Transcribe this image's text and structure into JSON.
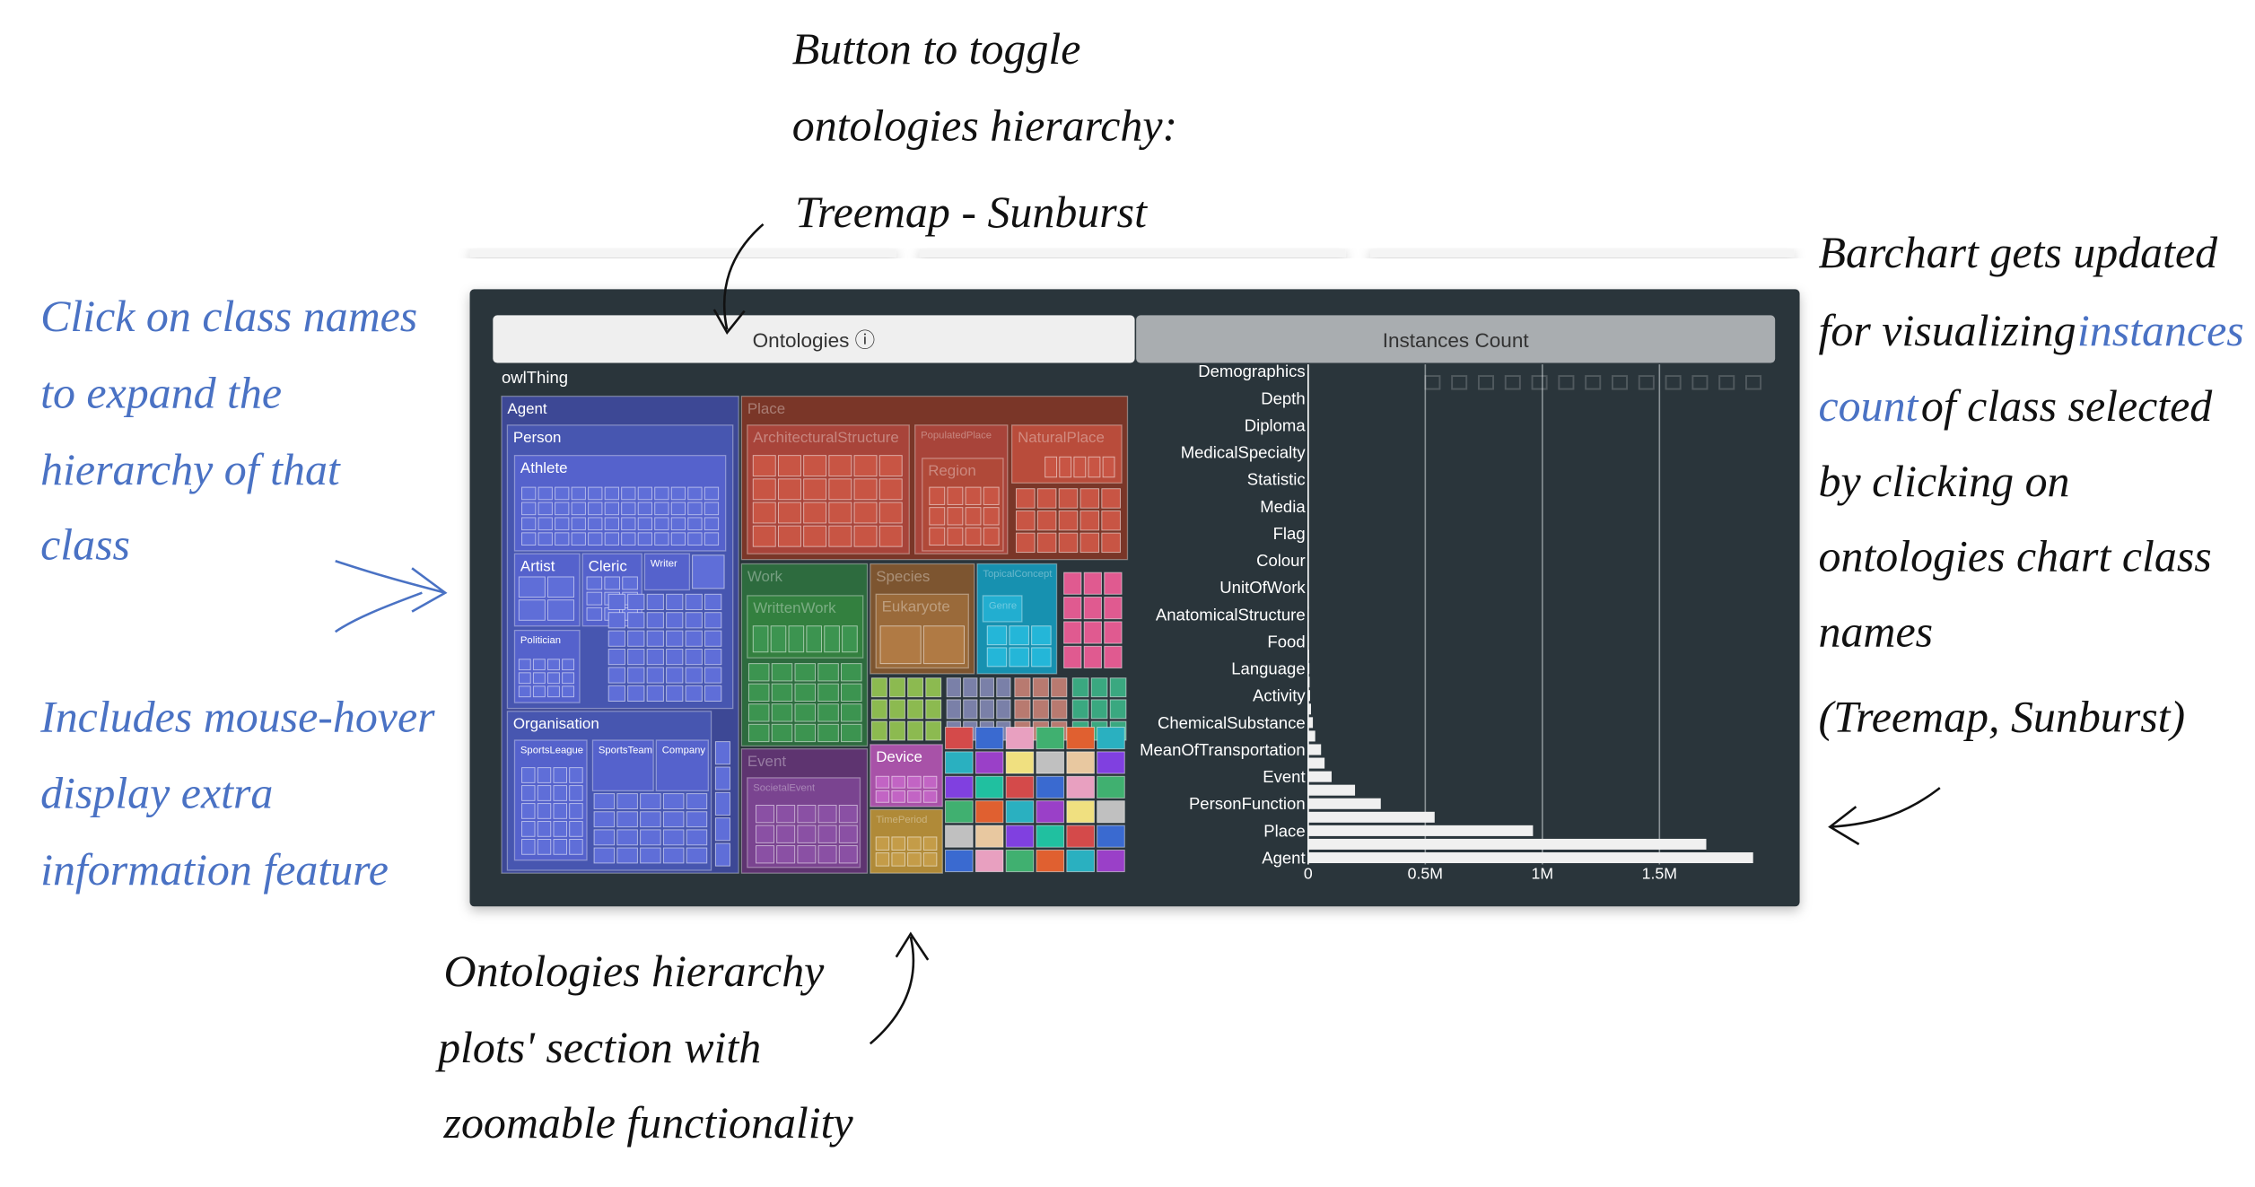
{
  "annotations": {
    "toggle_button": [
      "Button to toggle",
      "ontologies hierarchy:",
      "Treemap - Sunburst"
    ],
    "click_names": [
      "Click on class names",
      "to expand the",
      "hierarchy of that",
      "class"
    ],
    "mouse_hover": [
      "Includes mouse-hover",
      "display extra",
      "information feature"
    ],
    "barchart_update": [
      "Barchart gets updated",
      "for visualizing",
      "instances",
      "count",
      "of class selected",
      "by clicking on",
      "ontologies chart class",
      "names",
      "(Treemap, Sunburst)"
    ],
    "zoomable": [
      "Ontologies hierarchy",
      "plots' section with",
      "zoomable functionality"
    ]
  },
  "tabs": [
    "Ontologies ⓘ",
    "Instances Count"
  ],
  "treemap": {
    "root": "owlThing",
    "nodes": [
      "Agent",
      "Person",
      "Athlete",
      "Artist",
      "Cleric",
      "Writer",
      "Politician",
      "Organisation",
      "SportsLeague",
      "SportsTeam",
      "Company",
      "Place",
      "ArchitecturalStructure",
      "PopulatedPlace",
      "NaturalPlace",
      "Region",
      "Work",
      "WrittenWork",
      "Species",
      "Eukaryote",
      "TopicalConcept",
      "Genre",
      "Event",
      "SocietalEvent",
      "Device",
      "TimePeriod"
    ]
  },
  "chart_data": {
    "type": "bar",
    "orientation": "horizontal",
    "categories": [
      "Demographics",
      null,
      "Depth",
      null,
      "Diploma",
      null,
      "MedicalSpecialty",
      null,
      "Statistic",
      null,
      "Media",
      null,
      "Flag",
      null,
      "Colour",
      null,
      "UnitOfWork",
      null,
      "AnatomicalStructure",
      null,
      "Food",
      null,
      "Language",
      null,
      "Activity",
      null,
      "ChemicalSubstance",
      null,
      "MeanOfTransportation",
      null,
      "Event",
      null,
      "PersonFunction",
      null,
      "Place",
      null,
      "Agent"
    ],
    "values": [
      40,
      60,
      80,
      100,
      150,
      200,
      250,
      300,
      400,
      500,
      600,
      700,
      800,
      900,
      1000,
      1200,
      1500,
      1800,
      2000,
      2500,
      3000,
      4000,
      5000,
      6000,
      8000,
      12000,
      20000,
      30000,
      55000,
      70000,
      100000,
      200000,
      310000,
      540000,
      960000,
      1700000,
      1900000
    ],
    "color": "#f0f0f0",
    "xlim": [
      0,
      2000000
    ],
    "xticks": [
      0,
      {
        "value": 500000,
        "label": "0.5M"
      },
      {
        "value": 1000000,
        "label": "1M"
      },
      {
        "value": 1500000,
        "label": "1.5M"
      }
    ],
    "grid": true
  }
}
